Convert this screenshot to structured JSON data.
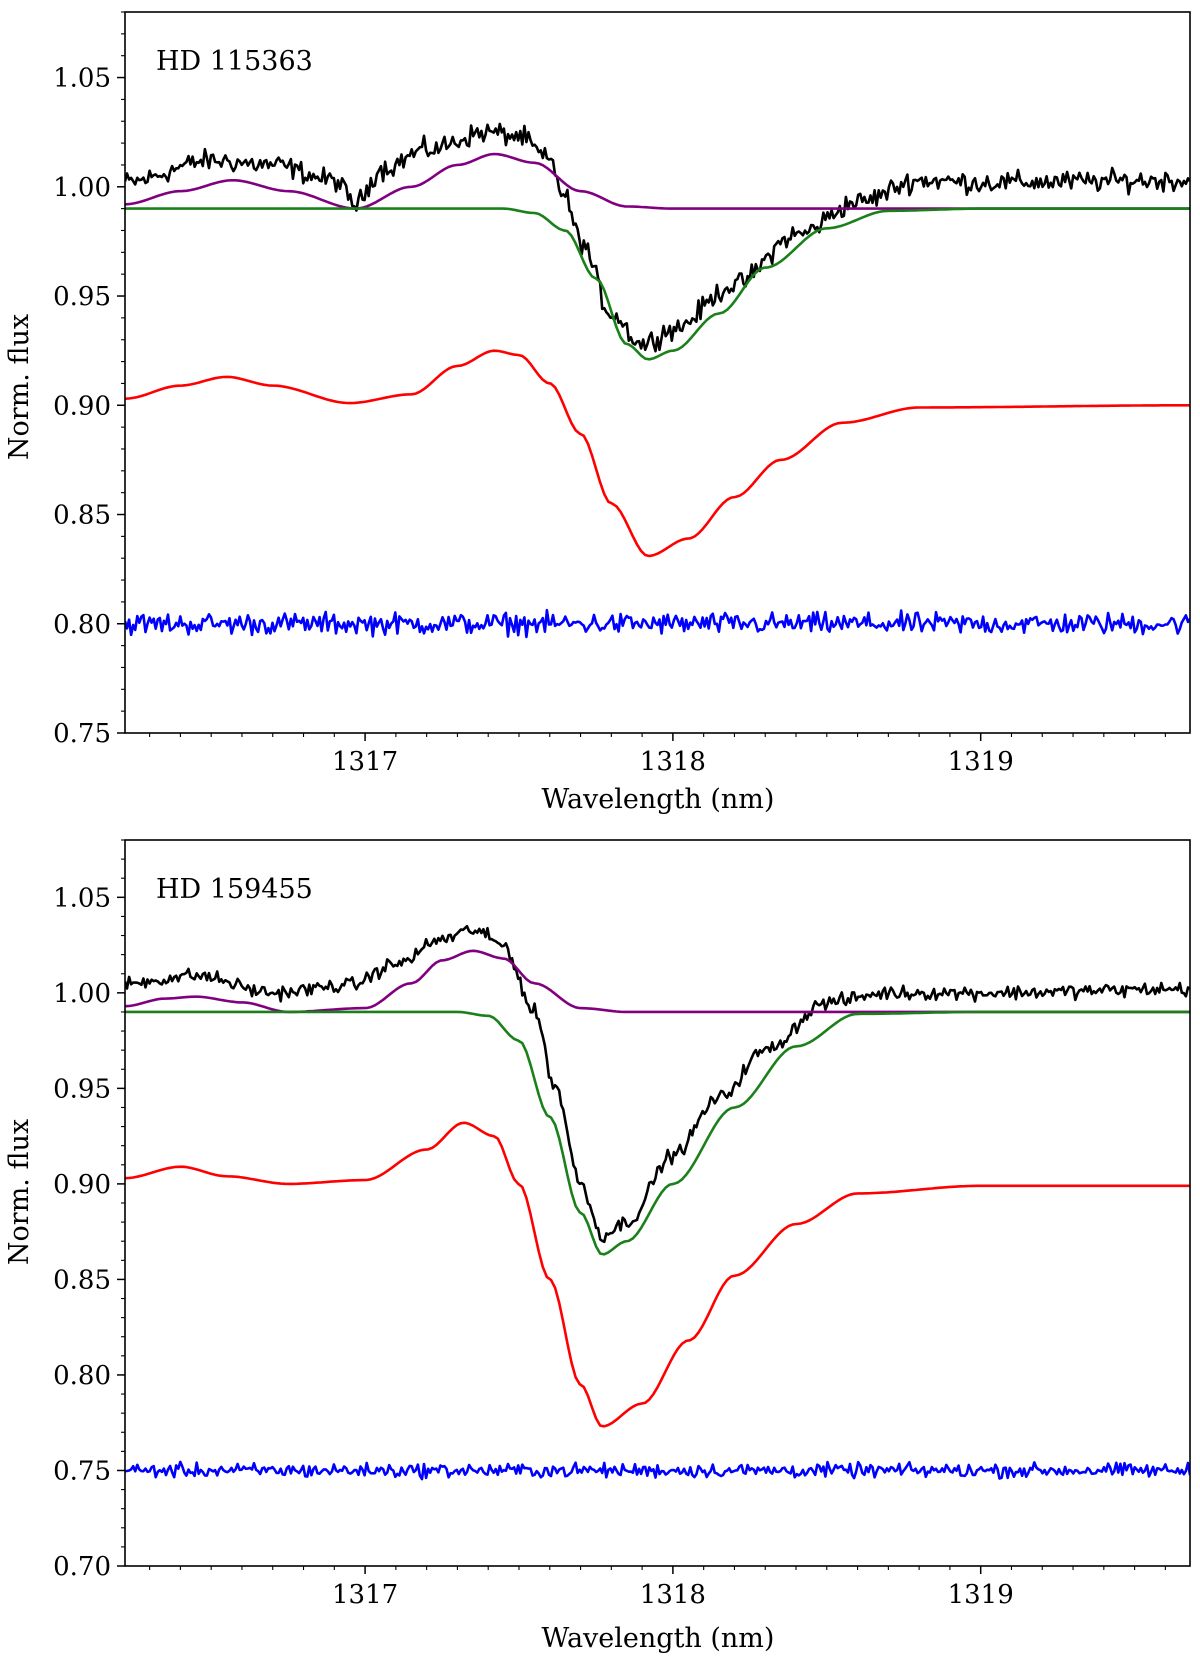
{
  "chart_data": [
    {
      "type": "line",
      "title": "HD 115363",
      "xlabel": "Wavelength (nm)",
      "ylabel": "Norm. flux",
      "xlim": [
        1316.22,
        1319.68
      ],
      "ylim": [
        0.75,
        1.08
      ],
      "xticks": [
        1317,
        1318,
        1319
      ],
      "xtick_labels": [
        "1317",
        "1318",
        "1319"
      ],
      "yticks": [
        0.75,
        0.8,
        0.85,
        0.9,
        0.95,
        1.0,
        1.05
      ],
      "ytick_labels": [
        "0.75",
        "0.80",
        "0.85",
        "0.90",
        "0.95",
        "1.00",
        "1.05"
      ],
      "grid": false,
      "legend": "none",
      "series": [
        {
          "color": "#000000",
          "noise": 0.004,
          "x": [
            1316.22,
            1316.5,
            1316.7,
            1316.9,
            1316.97,
            1317.05,
            1317.2,
            1317.4,
            1317.5,
            1317.6,
            1317.65,
            1317.7,
            1317.8,
            1317.9,
            1318.0,
            1318.2,
            1318.4,
            1318.6,
            1318.8,
            1319.0,
            1319.68
          ],
          "y": [
            1.002,
            1.012,
            1.01,
            1.003,
            0.992,
            1.008,
            1.017,
            1.025,
            1.023,
            1.012,
            0.995,
            0.975,
            0.942,
            0.928,
            0.935,
            0.955,
            0.978,
            0.993,
            1.003,
            1.002,
            1.003
          ]
        },
        {
          "color": "#800080",
          "noise": 0,
          "x": [
            1316.22,
            1316.4,
            1316.57,
            1316.75,
            1316.97,
            1317.15,
            1317.3,
            1317.42,
            1317.55,
            1317.7,
            1317.85,
            1318.0,
            1319.68
          ],
          "y": [
            0.992,
            0.998,
            1.003,
            0.998,
            0.99,
            1.0,
            1.01,
            1.015,
            1.011,
            0.998,
            0.991,
            0.99,
            0.99
          ]
        },
        {
          "color": "#1a801a",
          "noise": 0,
          "x": [
            1316.22,
            1317.45,
            1317.55,
            1317.65,
            1317.75,
            1317.85,
            1317.92,
            1318.0,
            1318.15,
            1318.3,
            1318.5,
            1318.7,
            1319.0,
            1319.68
          ],
          "y": [
            0.99,
            0.99,
            0.988,
            0.98,
            0.958,
            0.928,
            0.921,
            0.925,
            0.942,
            0.963,
            0.981,
            0.989,
            0.99,
            0.99
          ]
        },
        {
          "color": "#ff0000",
          "noise": 0,
          "x": [
            1316.22,
            1316.4,
            1316.55,
            1316.7,
            1316.95,
            1317.15,
            1317.3,
            1317.42,
            1317.5,
            1317.6,
            1317.7,
            1317.8,
            1317.92,
            1318.05,
            1318.2,
            1318.35,
            1318.55,
            1318.8,
            1319.68
          ],
          "y": [
            0.903,
            0.909,
            0.913,
            0.909,
            0.901,
            0.905,
            0.918,
            0.925,
            0.923,
            0.91,
            0.887,
            0.855,
            0.831,
            0.839,
            0.858,
            0.875,
            0.892,
            0.899,
            0.9
          ]
        },
        {
          "color": "#0000ff",
          "noise": 0.004,
          "x": [
            1316.22,
            1319.68
          ],
          "y": [
            0.8,
            0.8
          ]
        }
      ]
    },
    {
      "type": "line",
      "title": "HD 159455",
      "xlabel": "Wavelength (nm)",
      "ylabel": "Norm. flux",
      "xlim": [
        1316.22,
        1319.68
      ],
      "ylim": [
        0.7,
        1.08
      ],
      "xticks": [
        1317,
        1318,
        1319
      ],
      "xtick_labels": [
        "1317",
        "1318",
        "1319"
      ],
      "yticks": [
        0.7,
        0.75,
        0.8,
        0.85,
        0.9,
        0.95,
        1.0,
        1.05
      ],
      "ytick_labels": [
        "0.70",
        "0.75",
        "0.80",
        "0.85",
        "0.90",
        "0.95",
        "1.00",
        "1.05"
      ],
      "grid": false,
      "legend": "none",
      "series": [
        {
          "color": "#000000",
          "noise": 0.003,
          "x": [
            1316.22,
            1316.45,
            1316.7,
            1316.95,
            1317.1,
            1317.25,
            1317.35,
            1317.45,
            1317.55,
            1317.62,
            1317.7,
            1317.77,
            1317.85,
            1318.0,
            1318.15,
            1318.3,
            1318.5,
            1318.7,
            1319.0,
            1319.68
          ],
          "y": [
            1.005,
            1.009,
            1.0,
            1.004,
            1.015,
            1.028,
            1.033,
            1.025,
            0.99,
            0.95,
            0.9,
            0.873,
            0.88,
            0.915,
            0.945,
            0.97,
            0.995,
            1.0,
            1.0,
            1.002
          ]
        },
        {
          "color": "#800080",
          "noise": 0,
          "x": [
            1316.22,
            1316.35,
            1316.45,
            1316.6,
            1316.75,
            1317.0,
            1317.15,
            1317.25,
            1317.35,
            1317.45,
            1317.55,
            1317.7,
            1317.85,
            1319.68
          ],
          "y": [
            0.993,
            0.997,
            0.998,
            0.995,
            0.99,
            0.992,
            1.005,
            1.017,
            1.022,
            1.018,
            1.005,
            0.992,
            0.99,
            0.99
          ]
        },
        {
          "color": "#1a801a",
          "noise": 0,
          "x": [
            1316.22,
            1317.3,
            1317.4,
            1317.5,
            1317.6,
            1317.7,
            1317.77,
            1317.85,
            1318.0,
            1318.2,
            1318.4,
            1318.6,
            1319.0,
            1319.68
          ],
          "y": [
            0.99,
            0.99,
            0.988,
            0.975,
            0.935,
            0.885,
            0.863,
            0.87,
            0.9,
            0.94,
            0.972,
            0.989,
            0.99,
            0.99
          ]
        },
        {
          "color": "#ff0000",
          "noise": 0,
          "x": [
            1316.22,
            1316.4,
            1316.55,
            1316.75,
            1317.0,
            1317.2,
            1317.32,
            1317.42,
            1317.5,
            1317.6,
            1317.7,
            1317.77,
            1317.9,
            1318.05,
            1318.2,
            1318.4,
            1318.6,
            1319.0,
            1319.68
          ],
          "y": [
            0.903,
            0.909,
            0.904,
            0.9,
            0.902,
            0.918,
            0.932,
            0.925,
            0.9,
            0.85,
            0.795,
            0.773,
            0.785,
            0.818,
            0.852,
            0.879,
            0.895,
            0.899,
            0.899
          ]
        },
        {
          "color": "#0000ff",
          "noise": 0.003,
          "x": [
            1316.22,
            1319.68
          ],
          "y": [
            0.75,
            0.75
          ]
        }
      ]
    }
  ]
}
